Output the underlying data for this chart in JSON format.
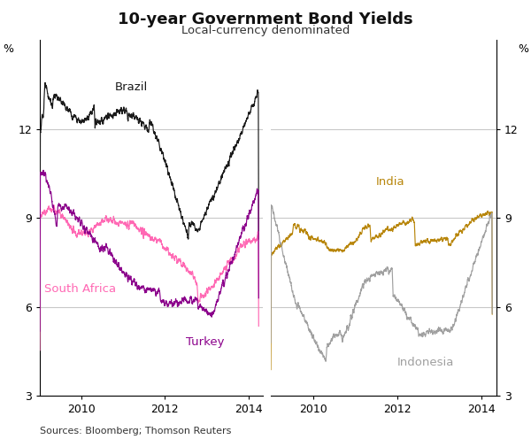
{
  "title": "10-year Government Bond Yields",
  "subtitle": "Local-currency denominated",
  "ylabel_left": "%",
  "ylabel_right": "%",
  "source": "Sources: Bloomberg; Thomson Reuters",
  "ylim": [
    3,
    15
  ],
  "yticks": [
    3,
    6,
    9,
    12
  ],
  "panel1": {
    "series": {
      "Brazil": {
        "color": "#1a1a1a"
      },
      "South Africa": {
        "color": "#ff69b4"
      },
      "Turkey": {
        "color": "#8b008b"
      }
    }
  },
  "panel2": {
    "series": {
      "India": {
        "color": "#b8860b"
      },
      "Indonesia": {
        "color": "#a0a0a0"
      }
    }
  },
  "grid_color": "#c8c8c8",
  "grid_linewidth": 0.8
}
